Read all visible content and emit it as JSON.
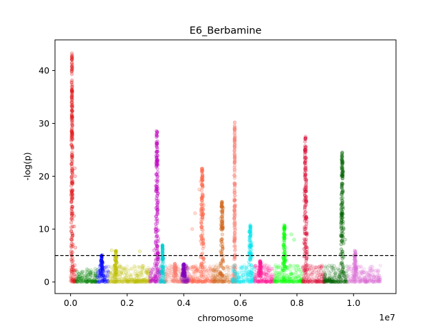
{
  "chart_data": {
    "type": "scatter",
    "title": "E6_Berbamine",
    "xlabel": "chromosome",
    "ylabel": "-log(p)",
    "x_offset_label": "1e7",
    "xlim": [
      -550000,
      11500000
    ],
    "ylim": [
      -2.2,
      45.8
    ],
    "x_ticks": [
      0.0,
      0.2,
      0.4,
      0.6,
      0.8,
      1.0
    ],
    "x_tick_labels": [
      "0.0",
      "0.2",
      "0.4",
      "0.6",
      "0.8",
      "1.0"
    ],
    "y_ticks": [
      0,
      10,
      20,
      30,
      40
    ],
    "y_tick_labels": [
      "0",
      "10",
      "20",
      "30",
      "40"
    ],
    "threshold": 5,
    "threshold_style": "dashed",
    "grid": false,
    "legend": "none",
    "series": [
      {
        "color": "#e41a1c",
        "x_range": [
          0,
          200000
        ],
        "peak_x": 50000,
        "peak_y": 43.5,
        "highlights": [
          [
            50000,
            41.5
          ],
          [
            60000,
            36
          ],
          [
            40000,
            34
          ],
          [
            55000,
            31
          ],
          [
            70000,
            27
          ],
          [
            45000,
            24
          ],
          [
            80000,
            19
          ],
          [
            150000,
            21.5
          ],
          [
            160000,
            20
          ],
          [
            120000,
            12.5
          ],
          [
            130000,
            10.5
          ],
          [
            170000,
            6.5
          ]
        ]
      },
      {
        "color": "#008000",
        "x_range": [
          200000,
          950000
        ],
        "peak_x": 600000,
        "peak_y": 2.5,
        "highlights": []
      },
      {
        "color": "#0000ff",
        "x_range": [
          950000,
          1350000
        ],
        "peak_x": 1100000,
        "peak_y": 5.2,
        "highlights": []
      },
      {
        "color": "#bfbf00",
        "x_range": [
          1350000,
          2800000
        ],
        "peak_x": 1600000,
        "peak_y": 6.0,
        "highlights": [
          [
            1450000,
            6.0
          ],
          [
            2450000,
            5.8
          ]
        ]
      },
      {
        "color": "#bf00bf",
        "x_range": [
          2800000,
          3200000
        ],
        "peak_x": 3050000,
        "peak_y": 28.8,
        "highlights": [
          [
            3040000,
            28
          ],
          [
            3060000,
            26
          ],
          [
            3030000,
            22
          ],
          [
            3050000,
            18
          ],
          [
            3020000,
            14
          ],
          [
            3000000,
            10
          ],
          [
            2950000,
            6
          ]
        ]
      },
      {
        "color": "#00ced1",
        "x_range": [
          3150000,
          3350000
        ],
        "peak_x": 3250000,
        "peak_y": 7,
        "highlights": []
      },
      {
        "color": "#fa8072",
        "x_range": [
          3350000,
          4150000
        ],
        "peak_x": 3700000,
        "peak_y": 3.5,
        "highlights": []
      },
      {
        "color": "#8000bf",
        "x_range": [
          3900000,
          4200000
        ],
        "peak_x": 4000000,
        "peak_y": 3.5,
        "highlights": []
      },
      {
        "color": "#ff6347",
        "x_range": [
          4200000,
          5000000
        ],
        "peak_x": 4650000,
        "peak_y": 21.5,
        "highlights": [
          [
            4650000,
            21
          ],
          [
            4600000,
            19
          ],
          [
            4550000,
            17.5
          ],
          [
            4700000,
            14.5
          ],
          [
            4400000,
            13
          ],
          [
            4300000,
            10
          ]
        ]
      },
      {
        "color": "#d2691e",
        "x_range": [
          5000000,
          5650000
        ],
        "peak_x": 5350000,
        "peak_y": 15.2,
        "highlights": [
          [
            5350000,
            15.2
          ],
          [
            5400000,
            14
          ],
          [
            5300000,
            12
          ],
          [
            5350000,
            8
          ]
        ]
      },
      {
        "color": "#fa8072",
        "x_range": [
          5700000,
          5850000
        ],
        "peak_x": 5800000,
        "peak_y": 30.2,
        "highlights": [
          [
            5800000,
            30.2
          ],
          [
            5790000,
            28
          ],
          [
            5810000,
            27.5
          ],
          [
            5800000,
            22.8
          ],
          [
            5810000,
            18.5
          ],
          [
            5790000,
            13.5
          ],
          [
            5800000,
            7.5
          ]
        ]
      },
      {
        "color": "#00e5ee",
        "x_range": [
          5700000,
          6500000
        ],
        "peak_x": 6350000,
        "peak_y": 10.8,
        "highlights": [
          [
            6350000,
            10.8
          ],
          [
            6300000,
            9.5
          ]
        ]
      },
      {
        "color": "#ff1493",
        "x_range": [
          6500000,
          7200000
        ],
        "peak_x": 6700000,
        "peak_y": 4.0,
        "highlights": []
      },
      {
        "color": "#00ff00",
        "x_range": [
          7200000,
          8200000
        ],
        "peak_x": 7550000,
        "peak_y": 10.8,
        "highlights": [
          [
            7550000,
            10.8
          ],
          [
            7800000,
            9
          ],
          [
            7900000,
            8
          ]
        ]
      },
      {
        "color": "#dc143c",
        "x_range": [
          8200000,
          9000000
        ],
        "peak_x": 8300000,
        "peak_y": 27.5,
        "highlights": [
          [
            8300000,
            27.5
          ],
          [
            8280000,
            24
          ],
          [
            8310000,
            22
          ],
          [
            8290000,
            20
          ],
          [
            8320000,
            15
          ],
          [
            8270000,
            10
          ]
        ]
      },
      {
        "color": "#006400",
        "x_range": [
          8950000,
          9800000
        ],
        "peak_x": 9600000,
        "peak_y": 24.5,
        "highlights": [
          [
            9600000,
            24.5
          ],
          [
            9580000,
            23
          ],
          [
            9620000,
            20
          ],
          [
            9590000,
            17
          ],
          [
            9560000,
            13
          ],
          [
            9650000,
            10
          ],
          [
            9700000,
            8
          ]
        ]
      },
      {
        "color": "#da70d6",
        "x_range": [
          9800000,
          10950000
        ],
        "peak_x": 10050000,
        "peak_y": 6.0,
        "highlights": []
      }
    ]
  }
}
